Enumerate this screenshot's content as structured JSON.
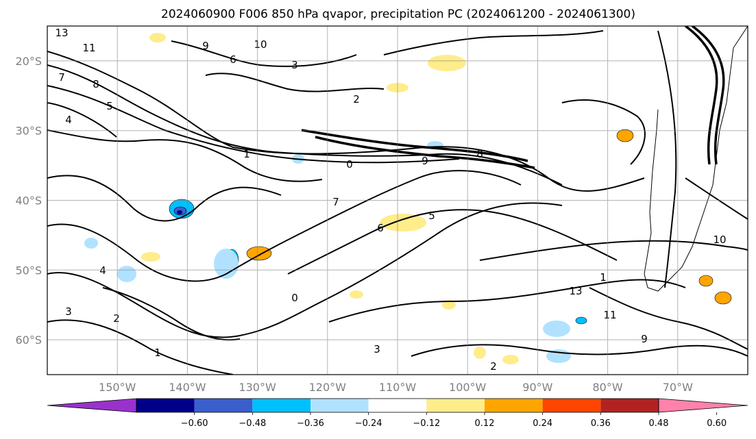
{
  "title": "2024060900 F006 850 hPa qvapor, precipitation PC (2024061200 - 2024061300)",
  "map": {
    "lon_range": [
      -160,
      -60
    ],
    "lat_range": [
      -65,
      -15
    ],
    "lon_ticks": [
      {
        "value": -150,
        "label": "150°W"
      },
      {
        "value": -140,
        "label": "140°W"
      },
      {
        "value": -130,
        "label": "130°W"
      },
      {
        "value": -120,
        "label": "120°W"
      },
      {
        "value": -110,
        "label": "110°W"
      },
      {
        "value": -100,
        "label": "100°W"
      },
      {
        "value": -90,
        "label": "90°W"
      },
      {
        "value": -80,
        "label": "80°W"
      },
      {
        "value": -70,
        "label": "70°W"
      }
    ],
    "lat_ticks": [
      {
        "value": -20,
        "label": "20°S"
      },
      {
        "value": -30,
        "label": "30°S"
      },
      {
        "value": -40,
        "label": "40°S"
      },
      {
        "value": -50,
        "label": "50°S"
      },
      {
        "value": -60,
        "label": "60°S"
      }
    ],
    "grid": true,
    "contour_labels": [
      "13",
      "11",
      "9",
      "10",
      "6",
      "7",
      "8",
      "5",
      "4",
      "3",
      "2",
      "1",
      "0",
      "9",
      "8",
      "7",
      "6",
      "5",
      "4",
      "3",
      "2",
      "1",
      "0",
      "3",
      "2",
      "1"
    ]
  },
  "colorbar": {
    "ticks": [
      "−0.60",
      "−0.48",
      "−0.36",
      "−0.24",
      "−0.12",
      "0.12",
      "0.24",
      "0.36",
      "0.48",
      "0.60"
    ],
    "colors": [
      "#9932cc",
      "#00008b",
      "#3a5fcd",
      "#00bfff",
      "#b0e2ff",
      "#ffffff",
      "#ffec8b",
      "#ffa500",
      "#ff4500",
      "#b22222",
      "#ff82ab"
    ]
  }
}
